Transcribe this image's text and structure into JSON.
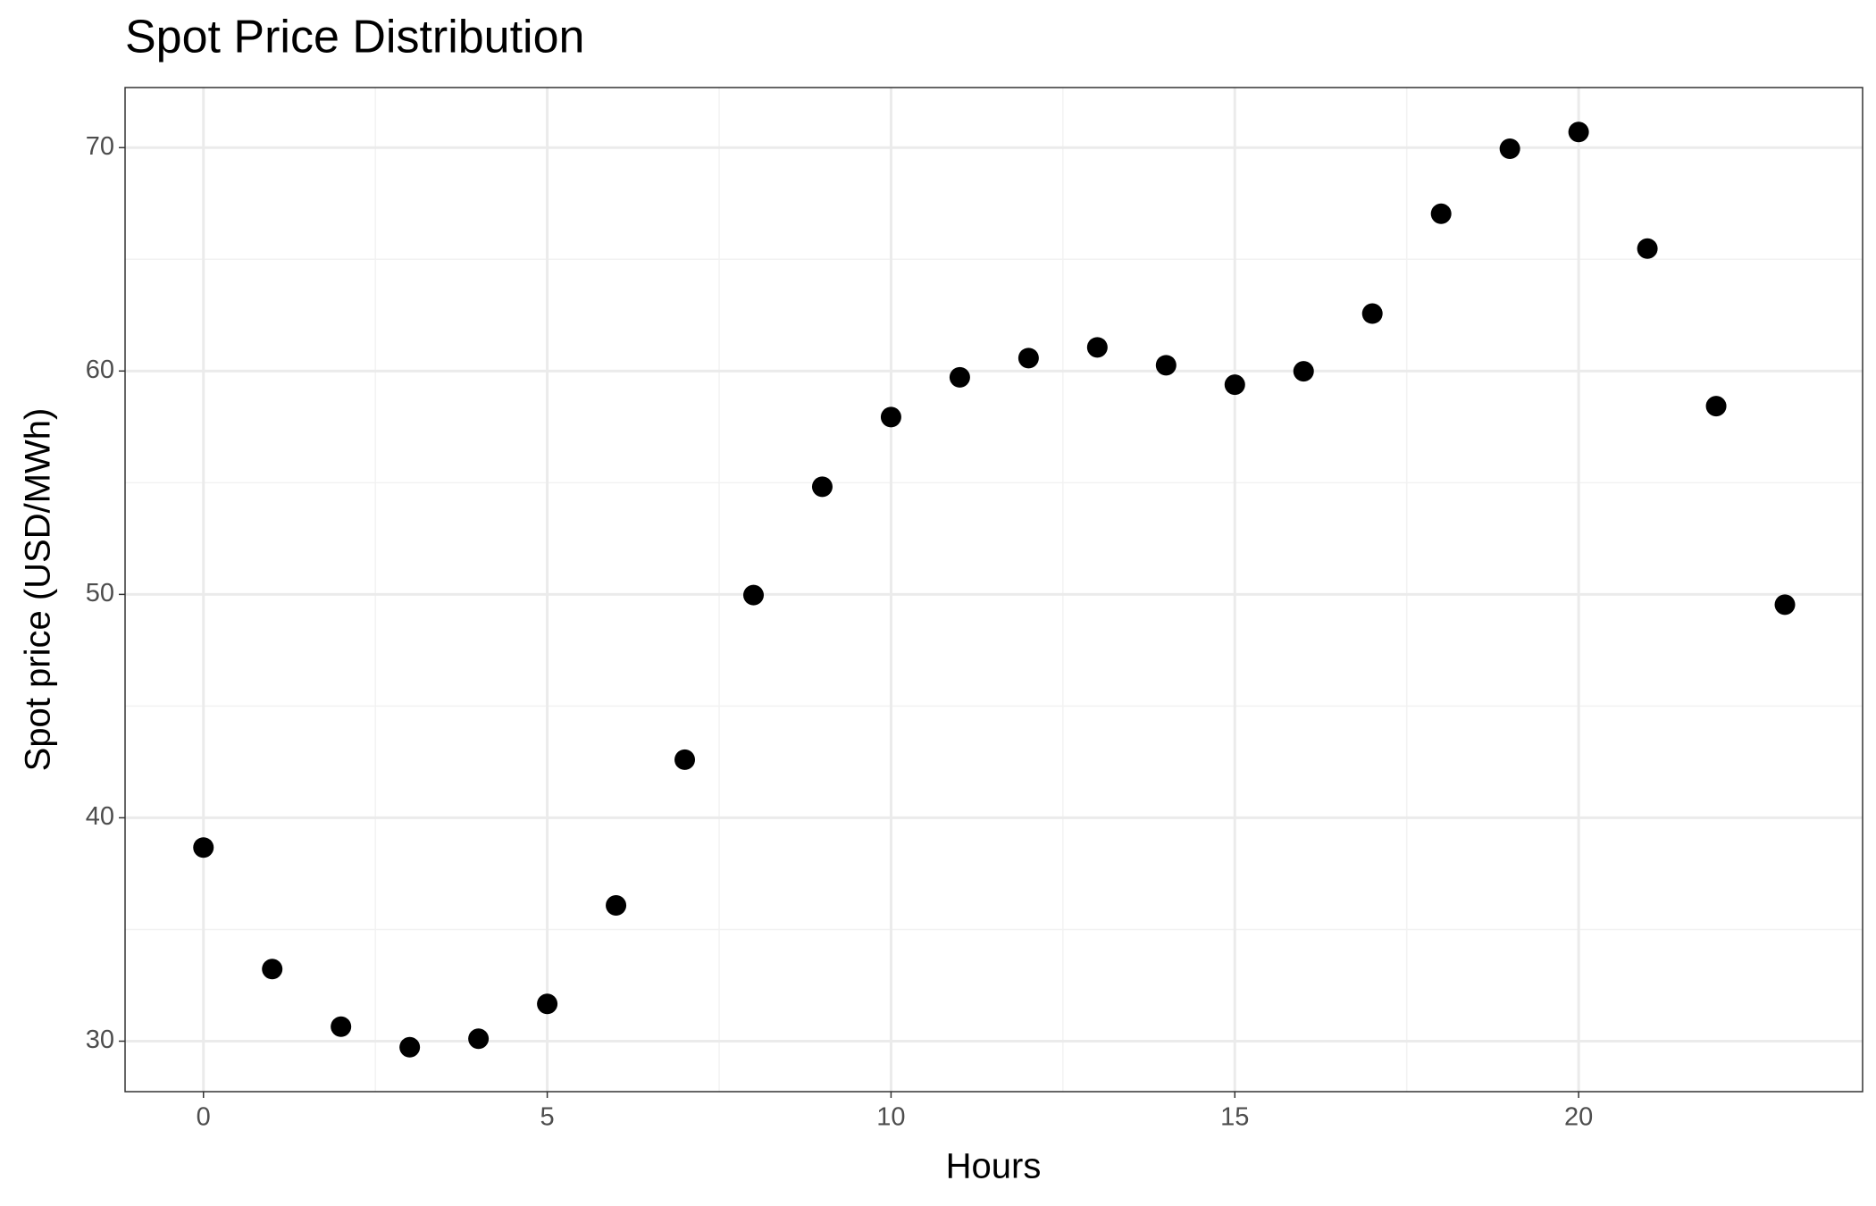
{
  "chart_data": {
    "type": "scatter",
    "title": "Spot Price Distribution",
    "x_label": "Hours",
    "y_label": "Spot price (USD/MWh)",
    "x": [
      0,
      1,
      2,
      3,
      4,
      5,
      6,
      7,
      8,
      9,
      10,
      11,
      12,
      13,
      14,
      15,
      16,
      17,
      18,
      19,
      20,
      21,
      22,
      23
    ],
    "values": [
      38.67,
      33.23,
      30.65,
      29.73,
      30.11,
      31.67,
      36.08,
      42.6,
      49.97,
      54.82,
      57.94,
      59.72,
      60.58,
      61.06,
      60.26,
      59.39,
      59.99,
      62.57,
      67.04,
      69.95,
      70.7,
      65.48,
      58.43,
      49.54
    ],
    "color": "#000000",
    "xlim": [
      -1.14,
      24.13
    ],
    "xticks": [
      0,
      5,
      10,
      15,
      20
    ],
    "ylim": [
      27.74,
      72.69
    ],
    "yticks": [
      30,
      40,
      50,
      60,
      70
    ],
    "grid": true
  }
}
